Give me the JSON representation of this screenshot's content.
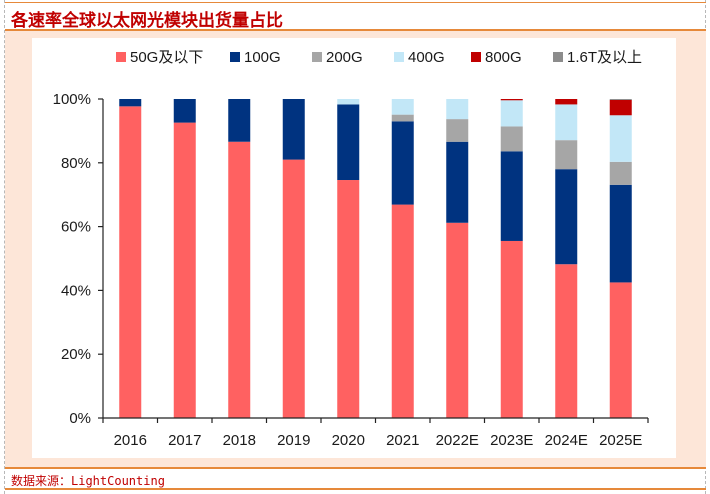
{
  "header": {
    "title": "各速率全球以太网光模块出货量占比"
  },
  "footer": {
    "source": "数据来源：LightCounting"
  },
  "chart_data": {
    "type": "bar",
    "stacked": true,
    "title": "各速率全球以太网光模块出货量占比",
    "xlabel": "",
    "ylabel": "",
    "ylim": [
      0,
      100
    ],
    "y_ticks": [
      0,
      20,
      40,
      60,
      80,
      100
    ],
    "y_tick_labels": [
      "0%",
      "20%",
      "40%",
      "60%",
      "80%",
      "100%"
    ],
    "grid": false,
    "legend_position": "top",
    "categories": [
      "2016",
      "2017",
      "2018",
      "2019",
      "2020",
      "2021",
      "2022E",
      "2023E",
      "2024E",
      "2025E"
    ],
    "series": [
      {
        "name": "50G及以下",
        "color": "#ff6161",
        "values": [
          97.7,
          92.6,
          86.6,
          81.0,
          74.6,
          66.9,
          61.2,
          55.5,
          48.2,
          42.5
        ]
      },
      {
        "name": "100G",
        "color": "#003380",
        "values": [
          2.3,
          7.4,
          13.4,
          19.0,
          23.7,
          26.1,
          25.4,
          28.1,
          29.8,
          30.6
        ]
      },
      {
        "name": "200G",
        "color": "#a6a6a6",
        "values": [
          0,
          0,
          0,
          0,
          0,
          2.1,
          7.1,
          7.8,
          9.1,
          7.2
        ]
      },
      {
        "name": "400G",
        "color": "#c2e7f7",
        "values": [
          0,
          0,
          0,
          0,
          1.7,
          4.9,
          6.3,
          8.2,
          11.2,
          14.6
        ]
      },
      {
        "name": "800G",
        "color": "#c00000",
        "values": [
          0,
          0,
          0,
          0,
          0,
          0,
          0,
          0.4,
          1.7,
          4.8
        ]
      },
      {
        "name": "1.6T及以上",
        "color": "#8c8c8c",
        "values": [
          0,
          0,
          0,
          0,
          0,
          0,
          0,
          0,
          0,
          0.3
        ]
      }
    ]
  }
}
